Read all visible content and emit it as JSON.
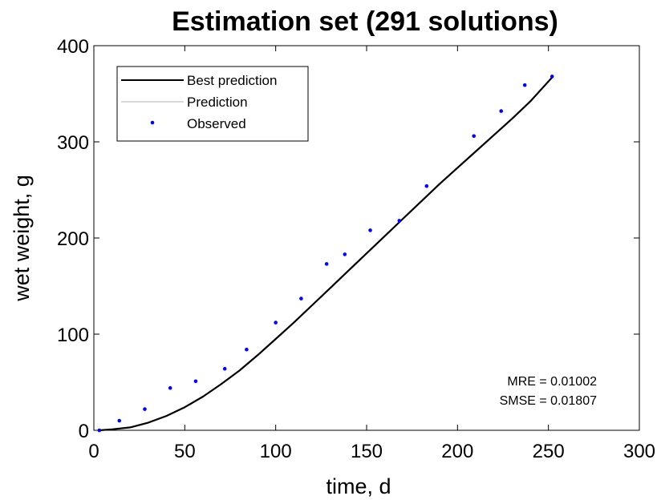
{
  "chart_data": {
    "type": "line",
    "title": "Estimation set (291 solutions)",
    "xlabel": "time, d",
    "ylabel": "wet weight, g",
    "xlim": [
      0,
      300
    ],
    "ylim": [
      0,
      400
    ],
    "xticks": [
      0,
      50,
      100,
      150,
      200,
      250,
      300
    ],
    "yticks": [
      0,
      100,
      200,
      300,
      400
    ],
    "grid": false,
    "legend_position": "top-left",
    "legend": [
      {
        "label": "Best prediction",
        "kind": "line",
        "color": "#000000"
      },
      {
        "label": "Prediction",
        "kind": "line",
        "color": "#c0c0c0"
      },
      {
        "label": "Observed",
        "kind": "marker",
        "color": "#0000ff"
      }
    ],
    "series": [
      {
        "name": "Best prediction",
        "kind": "line",
        "color": "#000000",
        "x": [
          3,
          10,
          20,
          30,
          40,
          50,
          60,
          70,
          80,
          90,
          100,
          110,
          120,
          130,
          140,
          150,
          160,
          170,
          180,
          190,
          200,
          210,
          220,
          230,
          240,
          252
        ],
        "y": [
          0,
          1,
          3,
          8,
          15,
          24,
          35,
          48,
          62,
          78,
          95,
          112,
          130,
          148,
          166,
          184,
          202,
          220,
          238,
          256,
          273,
          290,
          307,
          324,
          342,
          367
        ]
      },
      {
        "name": "Prediction",
        "kind": "line",
        "color": "#c0c0c0",
        "x": [
          3,
          10,
          20,
          30,
          40,
          50,
          60,
          70,
          80,
          90,
          100,
          110,
          120,
          130,
          140,
          150,
          160,
          170,
          180,
          190,
          200,
          210,
          220,
          230,
          240,
          252
        ],
        "y": [
          0,
          1,
          3,
          8,
          15,
          24,
          35,
          48,
          62,
          78,
          95,
          112,
          130,
          148,
          166,
          184,
          202,
          220,
          238,
          256,
          273,
          290,
          307,
          324,
          342,
          367
        ]
      },
      {
        "name": "Observed",
        "kind": "scatter",
        "color": "#0000ff",
        "x": [
          3,
          14,
          28,
          42,
          56,
          72,
          84,
          100,
          114,
          128,
          138,
          152,
          168,
          183,
          209,
          224,
          237,
          252
        ],
        "y": [
          0,
          10,
          22,
          44,
          51,
          64,
          84,
          112,
          137,
          173,
          183,
          208,
          218,
          254,
          306,
          332,
          359,
          368
        ]
      }
    ],
    "annotations": [
      "MRE = 0.01002",
      "SMSE = 0.01807"
    ]
  }
}
